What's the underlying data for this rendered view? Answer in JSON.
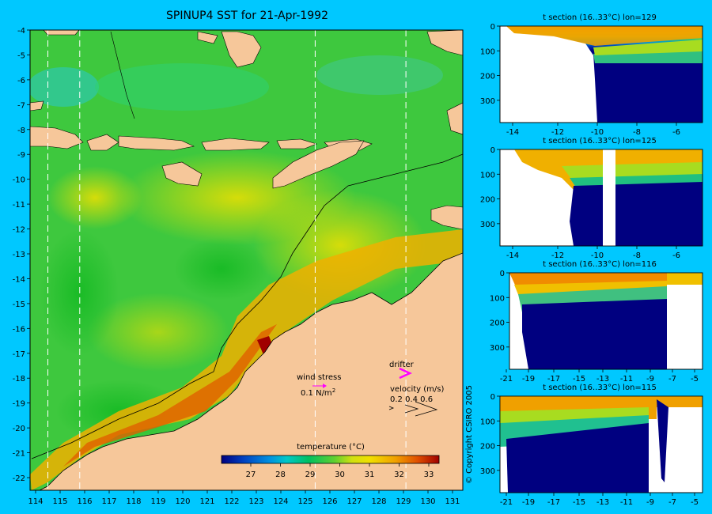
{
  "title": "SPINUP4 SST for 21-Apr-1992",
  "map": {
    "lat_ticks": [
      -4,
      -5,
      -6,
      -7,
      -8,
      -9,
      -10,
      -11,
      -12,
      -13,
      -14,
      -15,
      -16,
      -17,
      -18,
      -19,
      -20,
      -21,
      -22
    ],
    "lon_ticks": [
      114,
      115,
      116,
      117,
      118,
      119,
      120,
      121,
      122,
      123,
      124,
      125,
      126,
      127,
      128,
      129,
      130,
      131
    ],
    "section_lons": [
      114.5,
      115.8,
      125.4,
      129.1
    ],
    "colors": {
      "land": "#f6c79a",
      "ocean_base": "#3ec83e"
    }
  },
  "colorbar": {
    "title": "temperature (°C)",
    "ticks": [
      "27",
      "28",
      "29",
      "30",
      "31",
      "32",
      "33"
    ],
    "colors": [
      "#000080",
      "#0040c0",
      "#0090e0",
      "#00c8c8",
      "#00c060",
      "#30c030",
      "#a8dc20",
      "#f0f000",
      "#f0c000",
      "#f08c00",
      "#e05000",
      "#a00000"
    ]
  },
  "wind_legend": {
    "label": "wind stress",
    "scale": "0.1 N/m",
    "unit_sup": "2"
  },
  "drifter_legend": {
    "label": "drifter"
  },
  "velocity_legend": {
    "label": "velocity (m/s)",
    "values": "0.2 0.4 0.6"
  },
  "sections": [
    {
      "title": "t section (16..33°C) lon=129",
      "x_ticks": [
        "-14",
        "-12",
        "-10",
        "-8",
        "-6"
      ],
      "y_ticks": [
        "0",
        "100",
        "200",
        "300"
      ]
    },
    {
      "title": "t section (16..33°C) lon=125",
      "x_ticks": [
        "-14",
        "-12",
        "-10",
        "-8",
        "-6"
      ],
      "y_ticks": [
        "0",
        "100",
        "200",
        "300"
      ]
    },
    {
      "title": "t section (16..33°C) lon=116",
      "x_ticks": [
        "-21",
        "-19",
        "-17",
        "-15",
        "-13",
        "-11",
        "-9",
        "-7",
        "-5"
      ],
      "y_ticks": [
        "0",
        "100",
        "200",
        "300"
      ]
    },
    {
      "title": "t section (16..33°C) lon=115",
      "x_ticks": [
        "-21",
        "-19",
        "-17",
        "-15",
        "-13",
        "-11",
        "-9",
        "-7",
        "-5"
      ],
      "y_ticks": [
        "0",
        "100",
        "200",
        "300"
      ]
    }
  ],
  "copyright": "© Copyright CSIRO 2005"
}
